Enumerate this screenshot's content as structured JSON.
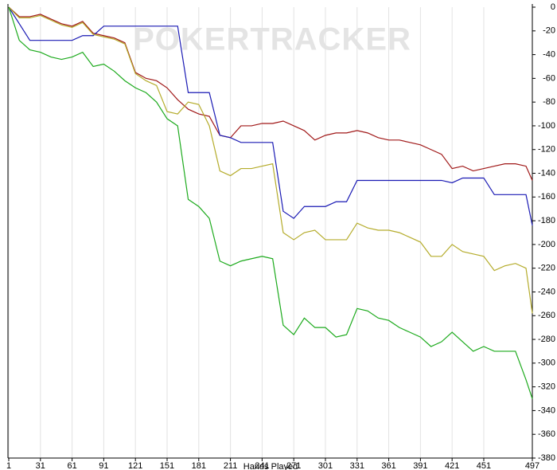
{
  "chart_data": {
    "type": "line",
    "watermark": "POKERTRACKER",
    "x_label": "Hands Played",
    "x": [
      1,
      11,
      21,
      31,
      41,
      51,
      61,
      71,
      81,
      91,
      101,
      111,
      121,
      131,
      141,
      151,
      161,
      171,
      181,
      191,
      201,
      211,
      221,
      231,
      241,
      251,
      261,
      271,
      281,
      291,
      301,
      311,
      321,
      331,
      341,
      351,
      361,
      371,
      381,
      391,
      401,
      411,
      421,
      431,
      441,
      451,
      461,
      471,
      481,
      491,
      497
    ],
    "series": [
      {
        "color": "#a01818",
        "values": [
          0,
          -8,
          -8,
          -6,
          -10,
          -14,
          -16,
          -12,
          -22,
          -24,
          -26,
          -30,
          -55,
          -60,
          -62,
          -68,
          -78,
          -86,
          -90,
          -92,
          -108,
          -110,
          -100,
          -100,
          -98,
          -98,
          -96,
          -100,
          -104,
          -112,
          -108,
          -106,
          -106,
          -104,
          -106,
          -110,
          -112,
          -112,
          -114,
          -116,
          -120,
          -124,
          -136,
          -134,
          -138,
          -136,
          -134,
          -132,
          -132,
          -134,
          -146
        ]
      },
      {
        "color": "#1a1ab4",
        "values": [
          0,
          -14,
          -28,
          -28,
          -28,
          -28,
          -28,
          -24,
          -24,
          -16,
          -16,
          -16,
          -16,
          -16,
          -16,
          -16,
          -16,
          -72,
          -72,
          -72,
          -108,
          -110,
          -114,
          -114,
          -114,
          -114,
          -172,
          -178,
          -168,
          -168,
          -168,
          -164,
          -164,
          -146,
          -146,
          -146,
          -146,
          -146,
          -146,
          -146,
          -146,
          -146,
          -148,
          -144,
          -144,
          -144,
          -158,
          -158,
          -158,
          -158,
          -184
        ]
      },
      {
        "color": "#b5ac2c",
        "values": [
          0,
          -9,
          -9,
          -7,
          -11,
          -15,
          -17,
          -13,
          -23,
          -25,
          -27,
          -31,
          -56,
          -62,
          -66,
          -88,
          -90,
          -80,
          -82,
          -100,
          -138,
          -142,
          -136,
          -136,
          -134,
          -132,
          -190,
          -196,
          -190,
          -188,
          -196,
          -196,
          -196,
          -182,
          -186,
          -188,
          -188,
          -190,
          -194,
          -198,
          -210,
          -210,
          -200,
          -206,
          -208,
          -210,
          -222,
          -218,
          -216,
          -220,
          -258
        ]
      },
      {
        "color": "#1caa1c",
        "values": [
          0,
          -28,
          -36,
          -38,
          -42,
          -44,
          -42,
          -38,
          -50,
          -48,
          -54,
          -62,
          -68,
          -72,
          -80,
          -94,
          -100,
          -162,
          -168,
          -178,
          -214,
          -218,
          -214,
          -212,
          -210,
          -212,
          -268,
          -276,
          -262,
          -270,
          -270,
          -278,
          -276,
          -254,
          -256,
          -262,
          -264,
          -270,
          -274,
          -278,
          -286,
          -282,
          -274,
          -282,
          -290,
          -286,
          -290,
          -290,
          -290,
          -314,
          -330
        ]
      }
    ],
    "xlim": [
      1,
      497
    ],
    "xticks": [
      1,
      31,
      61,
      91,
      121,
      151,
      181,
      211,
      241,
      271,
      301,
      331,
      361,
      391,
      421,
      451,
      497
    ],
    "ylim": [
      -380,
      0
    ],
    "yticks": [
      0,
      -20,
      -40,
      -60,
      -80,
      -100,
      -120,
      -140,
      -160,
      -180,
      -200,
      -220,
      -240,
      -260,
      -280,
      -300,
      -320,
      -340,
      -360,
      -380
    ],
    "grid": true,
    "y_axis_side": "right"
  }
}
